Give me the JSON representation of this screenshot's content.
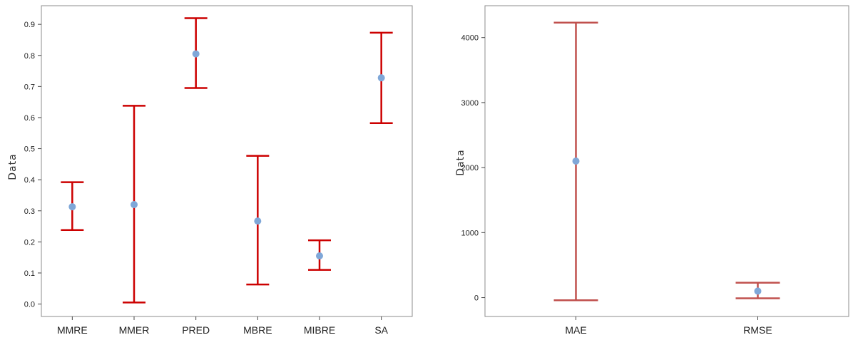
{
  "chart_data": [
    {
      "type": "interval",
      "ylabel": "Data",
      "ylim": [
        -0.04,
        0.96
      ],
      "yticks": [
        "0.0",
        "0.1",
        "0.2",
        "0.3",
        "0.4",
        "0.5",
        "0.6",
        "0.7",
        "0.8",
        "0.9"
      ],
      "categories": [
        "MMRE",
        "MMER",
        "PRED",
        "MBRE",
        "MIBRE",
        "SA"
      ],
      "mean": [
        0.313,
        0.32,
        0.805,
        0.267,
        0.155,
        0.728
      ],
      "lower": [
        0.238,
        0.005,
        0.695,
        0.063,
        0.11,
        0.582
      ],
      "upper": [
        0.392,
        0.638,
        0.92,
        0.477,
        0.205,
        0.873
      ],
      "interval_color": "#cc0000",
      "point_color": "#7fa7d8"
    },
    {
      "type": "interval",
      "ylabel": "Data",
      "ylim": [
        -290,
        4490
      ],
      "yticks": [
        "0",
        "1000",
        "2000",
        "3000",
        "4000"
      ],
      "categories": [
        "MAE",
        "RMSE"
      ],
      "mean": [
        2100,
        100
      ],
      "lower": [
        -40,
        -10
      ],
      "upper": [
        4230,
        230
      ],
      "interval_color": "#c0504d",
      "point_color": "#7fa7d8"
    }
  ]
}
